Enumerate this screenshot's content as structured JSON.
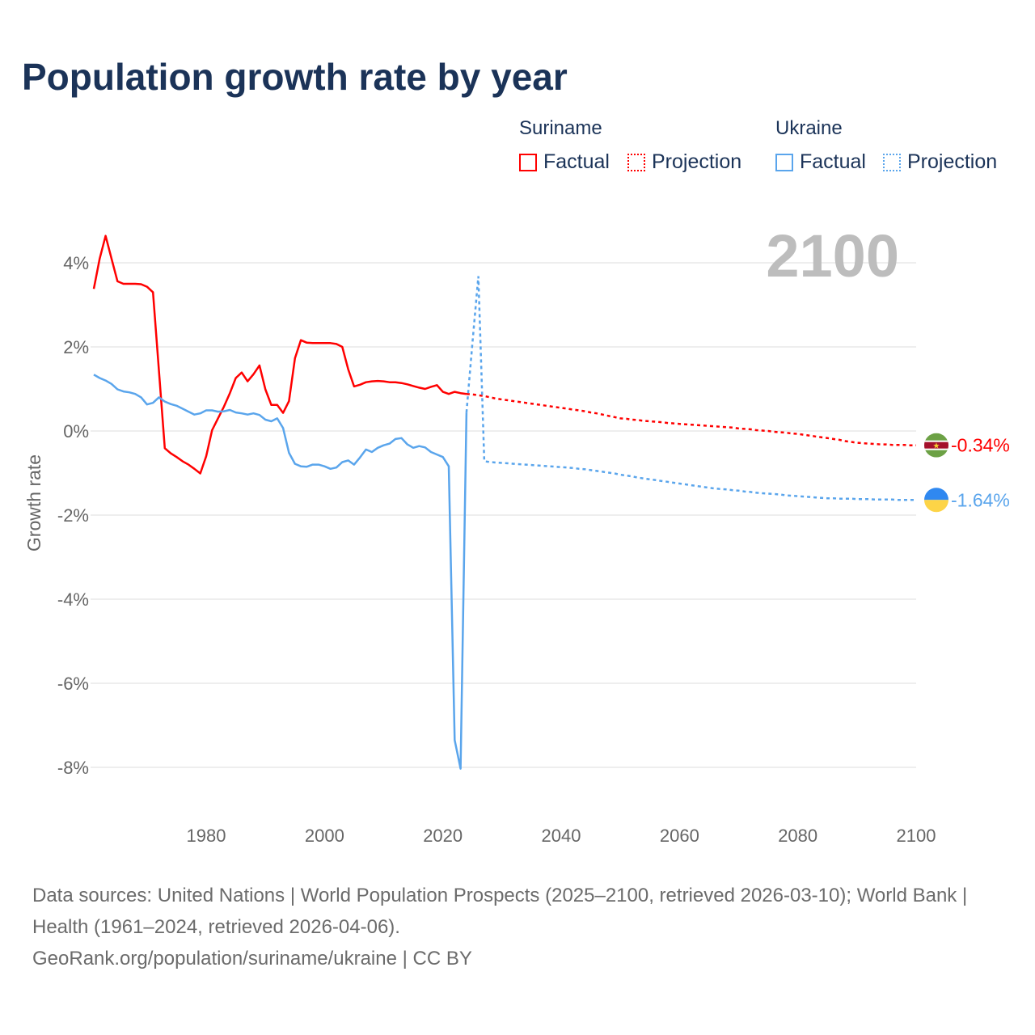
{
  "title": "Population growth rate by year",
  "legend": {
    "groups": [
      {
        "country": "Suriname",
        "factual": "Factual",
        "projection": "Projection",
        "color": "#ff0000"
      },
      {
        "country": "Ukraine",
        "factual": "Factual",
        "projection": "Projection",
        "color": "#5aa5ec"
      }
    ]
  },
  "footer": {
    "line1": "Data sources: United Nations | World Population Prospects (2025–2100, retrieved 2026-03-10); World Bank | Health (1961–2024, retrieved 2026-04-06).",
    "line2": "GeoRank.org/population/suriname/ukraine | CC BY"
  },
  "chart_data": {
    "type": "line",
    "title": "Population growth rate by year",
    "ylabel": "Growth rate",
    "xlabel": "",
    "year_label": "2100",
    "xlim": [
      1961,
      2100
    ],
    "ylim": [
      -9,
      5
    ],
    "xticks": [
      1980,
      2000,
      2020,
      2040,
      2060,
      2080,
      2100
    ],
    "yticks": [
      4,
      2,
      0,
      -2,
      -4,
      -6,
      -8
    ],
    "ytick_labels": [
      "4%",
      "2%",
      "0%",
      "-2%",
      "-4%",
      "-6%",
      "-8%"
    ],
    "grid": true,
    "series": [
      {
        "name": "Suriname",
        "color": "#ff0000",
        "end_label": "-0.34%",
        "flag": "suriname-flag",
        "factual": {
          "start": 1961,
          "values": [
            3.38,
            4.1,
            4.64,
            4.1,
            3.56,
            3.5,
            3.5,
            3.5,
            3.49,
            3.43,
            3.3,
            1.45,
            -0.41,
            -0.53,
            -0.62,
            -0.72,
            -0.8,
            -0.9,
            -1.01,
            -0.6,
            0.02,
            0.3,
            0.58,
            0.9,
            1.26,
            1.39,
            1.18,
            1.35,
            1.56,
            0.99,
            0.62,
            0.62,
            0.43,
            0.71,
            1.73,
            2.16,
            2.1,
            2.09,
            2.09,
            2.09,
            2.09,
            2.07,
            2.0,
            1.47,
            1.06,
            1.1,
            1.16,
            1.18,
            1.19,
            1.18,
            1.16,
            1.16,
            1.14,
            1.11,
            1.07,
            1.03,
            1.0,
            1.05,
            1.09,
            0.93,
            0.88,
            0.93,
            0.9,
            0.88
          ]
        },
        "projection": {
          "start": 2024,
          "values": [
            0.88,
            0.87,
            0.85,
            0.83,
            0.8,
            0.77,
            0.75,
            0.73,
            0.71,
            0.69,
            0.67,
            0.65,
            0.63,
            0.61,
            0.59,
            0.57,
            0.55,
            0.53,
            0.51,
            0.49,
            0.47,
            0.44,
            0.42,
            0.39,
            0.36,
            0.33,
            0.3,
            0.29,
            0.27,
            0.26,
            0.24,
            0.23,
            0.22,
            0.21,
            0.19,
            0.18,
            0.17,
            0.16,
            0.15,
            0.14,
            0.13,
            0.12,
            0.11,
            0.1,
            0.09,
            0.08,
            0.06,
            0.05,
            0.04,
            0.02,
            0.01,
            0.0,
            -0.02,
            -0.03,
            -0.04,
            -0.06,
            -0.07,
            -0.09,
            -0.11,
            -0.13,
            -0.15,
            -0.17,
            -0.19,
            -0.21,
            -0.24,
            -0.26,
            -0.28,
            -0.29,
            -0.3,
            -0.31,
            -0.32,
            -0.32,
            -0.33,
            -0.33,
            -0.33,
            -0.34,
            -0.34
          ]
        }
      },
      {
        "name": "Ukraine",
        "color": "#5aa5ec",
        "end_label": "-1.64%",
        "flag": "ukraine-flag",
        "factual": {
          "start": 1961,
          "values": [
            1.34,
            1.26,
            1.2,
            1.12,
            0.99,
            0.94,
            0.92,
            0.88,
            0.8,
            0.63,
            0.67,
            0.8,
            0.7,
            0.64,
            0.6,
            0.53,
            0.46,
            0.39,
            0.42,
            0.49,
            0.49,
            0.46,
            0.47,
            0.5,
            0.44,
            0.42,
            0.39,
            0.42,
            0.38,
            0.27,
            0.23,
            0.3,
            0.07,
            -0.52,
            -0.78,
            -0.84,
            -0.85,
            -0.8,
            -0.8,
            -0.84,
            -0.9,
            -0.87,
            -0.74,
            -0.7,
            -0.8,
            -0.63,
            -0.44,
            -0.5,
            -0.4,
            -0.34,
            -0.3,
            -0.19,
            -0.17,
            -0.32,
            -0.4,
            -0.36,
            -0.39,
            -0.5,
            -0.56,
            -0.62,
            -0.84,
            -7.35,
            -8.03,
            0.44
          ]
        },
        "projection": {
          "start": 2024,
          "values": [
            0.44,
            2.1,
            3.68,
            -0.72,
            -0.74,
            -0.75,
            -0.76,
            -0.77,
            -0.78,
            -0.79,
            -0.8,
            -0.81,
            -0.82,
            -0.83,
            -0.84,
            -0.85,
            -0.86,
            -0.87,
            -0.88,
            -0.9,
            -0.91,
            -0.93,
            -0.95,
            -0.97,
            -0.99,
            -1.01,
            -1.04,
            -1.06,
            -1.08,
            -1.11,
            -1.13,
            -1.15,
            -1.17,
            -1.19,
            -1.21,
            -1.23,
            -1.25,
            -1.27,
            -1.29,
            -1.31,
            -1.33,
            -1.35,
            -1.37,
            -1.38,
            -1.39,
            -1.41,
            -1.42,
            -1.44,
            -1.45,
            -1.47,
            -1.48,
            -1.49,
            -1.5,
            -1.51,
            -1.53,
            -1.54,
            -1.55,
            -1.56,
            -1.57,
            -1.58,
            -1.59,
            -1.6,
            -1.6,
            -1.61,
            -1.61,
            -1.61,
            -1.62,
            -1.62,
            -1.62,
            -1.63,
            -1.63,
            -1.63,
            -1.63,
            -1.64,
            -1.64,
            -1.64,
            -1.64
          ]
        }
      }
    ]
  }
}
